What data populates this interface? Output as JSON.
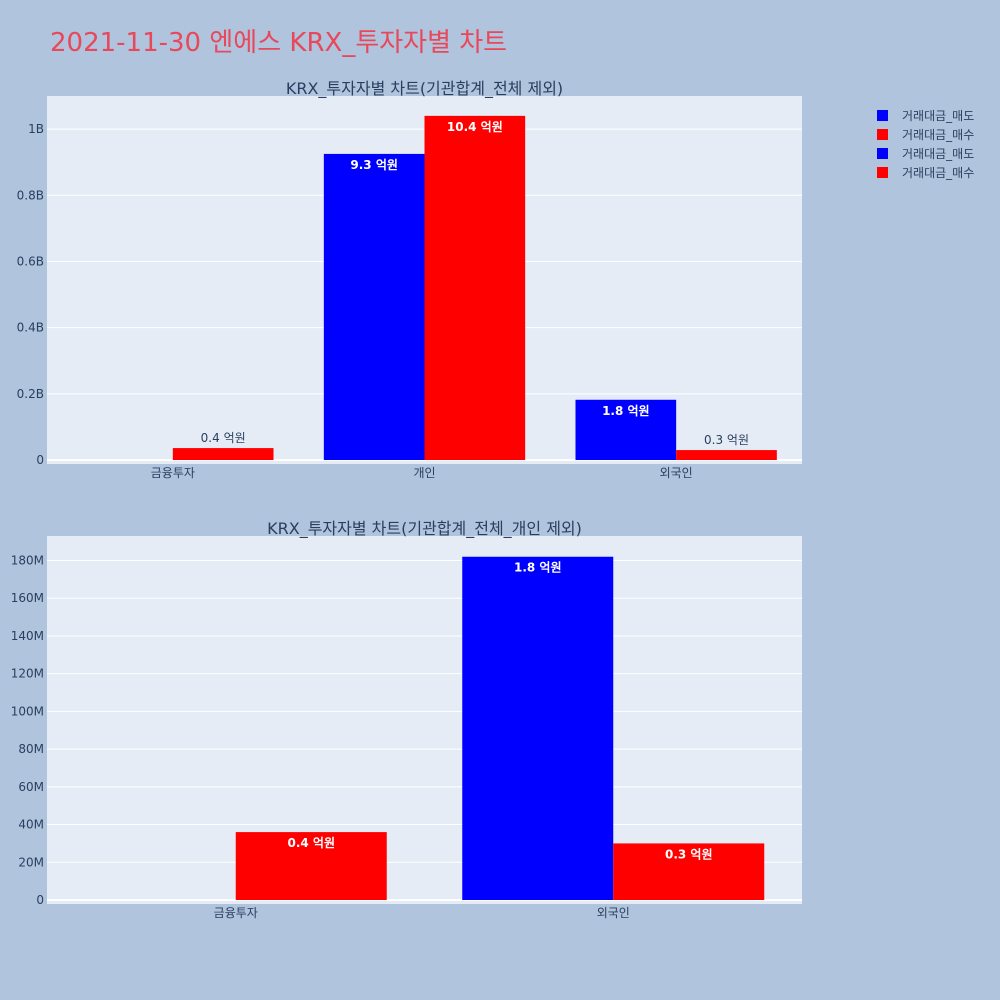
{
  "page": {
    "title": "2021-11-30 엔에스 KRX_투자자별 차트"
  },
  "colors": {
    "sell": "#0000ff",
    "buy": "#ff0000",
    "plot_bg": "#e5ecf6",
    "page_bg": "#b0c4de",
    "title": "#e8485a"
  },
  "legend": {
    "entries": [
      "거래대금_매도",
      "거래대금_매수",
      "거래대금_매도",
      "거래대금_매수"
    ]
  },
  "chart_data": [
    {
      "type": "bar",
      "title": "KRX_투자자별 차트(기관합계_전체 제외)",
      "categories": [
        "금융투자",
        "개인",
        "외국인"
      ],
      "series": [
        {
          "name": "거래대금_매도",
          "values": [
            0,
            925000000,
            182000000
          ],
          "labels": [
            "",
            "9.3 억원",
            "1.8 억원"
          ]
        },
        {
          "name": "거래대금_매수",
          "values": [
            36000000,
            1040000000,
            30000000
          ],
          "labels": [
            "0.4 억원",
            "10.4 억원",
            "0.3 억원"
          ]
        }
      ],
      "ylim": [
        0,
        1100000000
      ],
      "yticks": [
        0,
        200000000,
        400000000,
        600000000,
        800000000,
        1000000000
      ],
      "ytick_labels": [
        "0",
        "0.2B",
        "0.4B",
        "0.6B",
        "0.8B",
        "1B"
      ],
      "grid": true
    },
    {
      "type": "bar",
      "title": "KRX_투자자별 차트(기관합계_전체_개인 제외)",
      "categories": [
        "금융투자",
        "외국인"
      ],
      "series": [
        {
          "name": "거래대금_매도",
          "values": [
            0,
            182000000
          ],
          "labels": [
            "",
            "1.8 억원"
          ]
        },
        {
          "name": "거래대금_매수",
          "values": [
            36000000,
            30000000
          ],
          "labels": [
            "0.4 억원",
            "0.3 억원"
          ]
        }
      ],
      "ylim": [
        0,
        193000000
      ],
      "yticks": [
        0,
        20000000,
        40000000,
        60000000,
        80000000,
        100000000,
        120000000,
        140000000,
        160000000,
        180000000
      ],
      "ytick_labels": [
        "0",
        "20M",
        "40M",
        "60M",
        "80M",
        "100M",
        "120M",
        "140M",
        "160M",
        "180M"
      ],
      "grid": true
    }
  ]
}
